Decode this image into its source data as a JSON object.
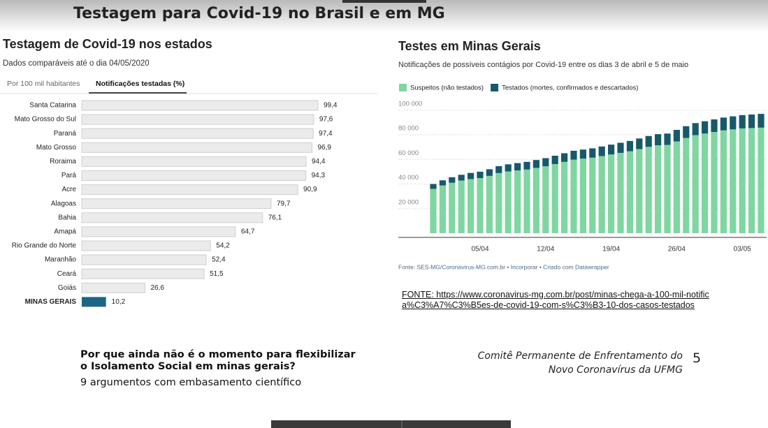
{
  "title": "Testagem para Covid-19 no Brasil e em MG",
  "chart_data": [
    {
      "type": "hbar",
      "title": "Testagem de Covid-19 nos estados",
      "subtitle": "Dados comparáveis até o dia 04/05/2020",
      "tabs": [
        "Por 100 mil habitantes",
        "Notificações testadas (%)"
      ],
      "active_tab": 1,
      "categories": [
        "Santa Catarina",
        "Mato Grosso do Sul",
        "Paraná",
        "Mato Grosso",
        "Roraima",
        "Pará",
        "Acre",
        "Alagoas",
        "Bahia",
        "Amapá",
        "Rio Grande do Norte",
        "Maranhão",
        "Ceará",
        "Goiás",
        "MINAS GERAIS"
      ],
      "values": [
        99.4,
        97.6,
        97.4,
        96.9,
        94.4,
        94.3,
        90.9,
        79.7,
        76.1,
        64.7,
        54.2,
        52.4,
        51.5,
        26.6,
        10.2
      ],
      "value_labels": [
        "99,4",
        "97,6",
        "97,4",
        "96,9",
        "94,4",
        "94,3",
        "90,9",
        "79,7",
        "76,1",
        "64,7",
        "54,2",
        "52,4",
        "51,5",
        "26,6",
        "10,2"
      ],
      "colors": [
        "#ebebeb",
        "#ebebeb",
        "#ebebeb",
        "#ebebeb",
        "#ebebeb",
        "#ebebeb",
        "#ebebeb",
        "#ebebeb",
        "#ebebeb",
        "#ebebeb",
        "#ebebeb",
        "#ebebeb",
        "#ebebeb",
        "#ebebeb",
        "#1c6586"
      ],
      "xlim": [
        0,
        100
      ]
    },
    {
      "type": "stacked_bar",
      "title": "Testes em Minas Gerais",
      "subtitle": "Notificações de possíveis contágios por Covid-19 entre os dias 3 de abril e 5 de maio",
      "categories": [
        null,
        null,
        null,
        null,
        null,
        "05/04",
        null,
        null,
        null,
        null,
        null,
        null,
        "12/04",
        null,
        null,
        null,
        null,
        null,
        null,
        "19/04",
        null,
        null,
        null,
        null,
        null,
        null,
        "26/04",
        null,
        null,
        null,
        null,
        null,
        null,
        "03/05",
        null,
        null
      ],
      "series": [
        {
          "name": "Suspeitos (não testados)",
          "color": "#7fd6a0",
          "values": [
            36000,
            38800,
            41000,
            42800,
            44000,
            44800,
            46600,
            48900,
            50200,
            51000,
            51800,
            53100,
            54400,
            56200,
            58000,
            59800,
            60600,
            61400,
            62700,
            64000,
            65300,
            66600,
            68400,
            70200,
            71500,
            71800,
            74600,
            77400,
            79700,
            81000,
            82300,
            83600,
            84400,
            85200,
            85500,
            85800
          ]
        },
        {
          "name": "Testados (mortes, confirmados e descartados)",
          "color": "#17596b",
          "values": [
            4000,
            4200,
            4500,
            4700,
            5000,
            5200,
            5400,
            5600,
            5800,
            6000,
            6200,
            6400,
            6600,
            6800,
            7000,
            7200,
            7400,
            7600,
            7800,
            8000,
            8200,
            8400,
            8600,
            8800,
            9000,
            9200,
            9400,
            9600,
            9800,
            10000,
            10200,
            10400,
            10600,
            10800,
            11000,
            11200
          ]
        }
      ],
      "ylim": [
        0,
        105000
      ],
      "yticks": [
        {
          "value": 20000,
          "label": "20 000"
        },
        {
          "value": 40000,
          "label": "40 000"
        },
        {
          "value": 60000,
          "label": "60 000"
        },
        {
          "value": 80000,
          "label": "80 000"
        },
        {
          "value": 100000,
          "label": "100 000"
        }
      ],
      "grid": true,
      "source": "Fonte: SES-MG/Coronavirus-MG.com.br • Incorporar • Criado com Datawrapper"
    }
  ],
  "source_link": "FONTE: https://www.coronavirus-mg.com.br/post/minas-chega-a-100-mil-notifica%C3%A7%C3%B5es-de-covid-19-com-s%C3%B3-10-dos-casos-testados",
  "footer": {
    "heading": "Por que ainda não é o momento para flexibilizar o Isolamento Social em minas gerais?",
    "subheading": "9 argumentos com embasamento científico",
    "credit": "Comitê Permanente de Enfrentamento do Novo Coronavírus da UFMG",
    "page_number": 5
  }
}
